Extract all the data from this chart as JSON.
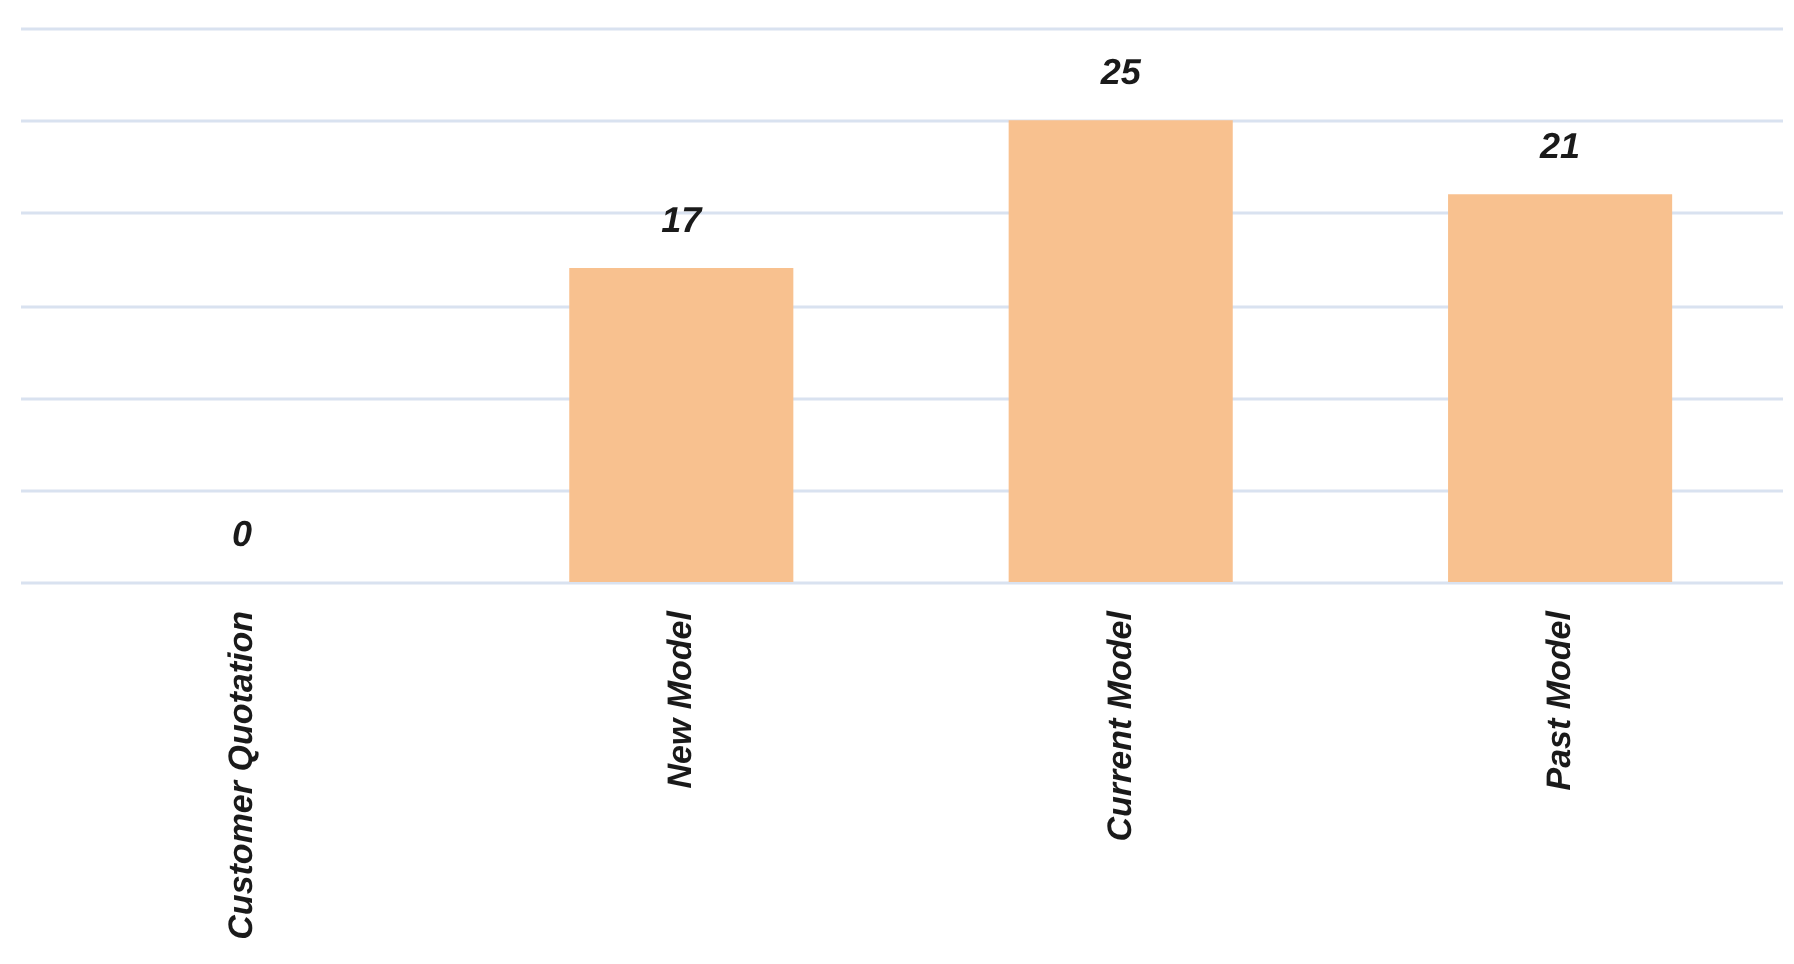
{
  "chart_data": {
    "type": "bar",
    "categories": [
      "Customer Quotation",
      "New Model",
      "Current Model",
      "Past Model"
    ],
    "values": [
      0,
      17,
      25,
      21
    ],
    "color": "#f8c18f",
    "ylim": [
      0,
      30
    ],
    "yticks": [
      0,
      5,
      10,
      15,
      20,
      25,
      30
    ],
    "grid": "y",
    "tick_labels": "x",
    "data_labels": true
  }
}
